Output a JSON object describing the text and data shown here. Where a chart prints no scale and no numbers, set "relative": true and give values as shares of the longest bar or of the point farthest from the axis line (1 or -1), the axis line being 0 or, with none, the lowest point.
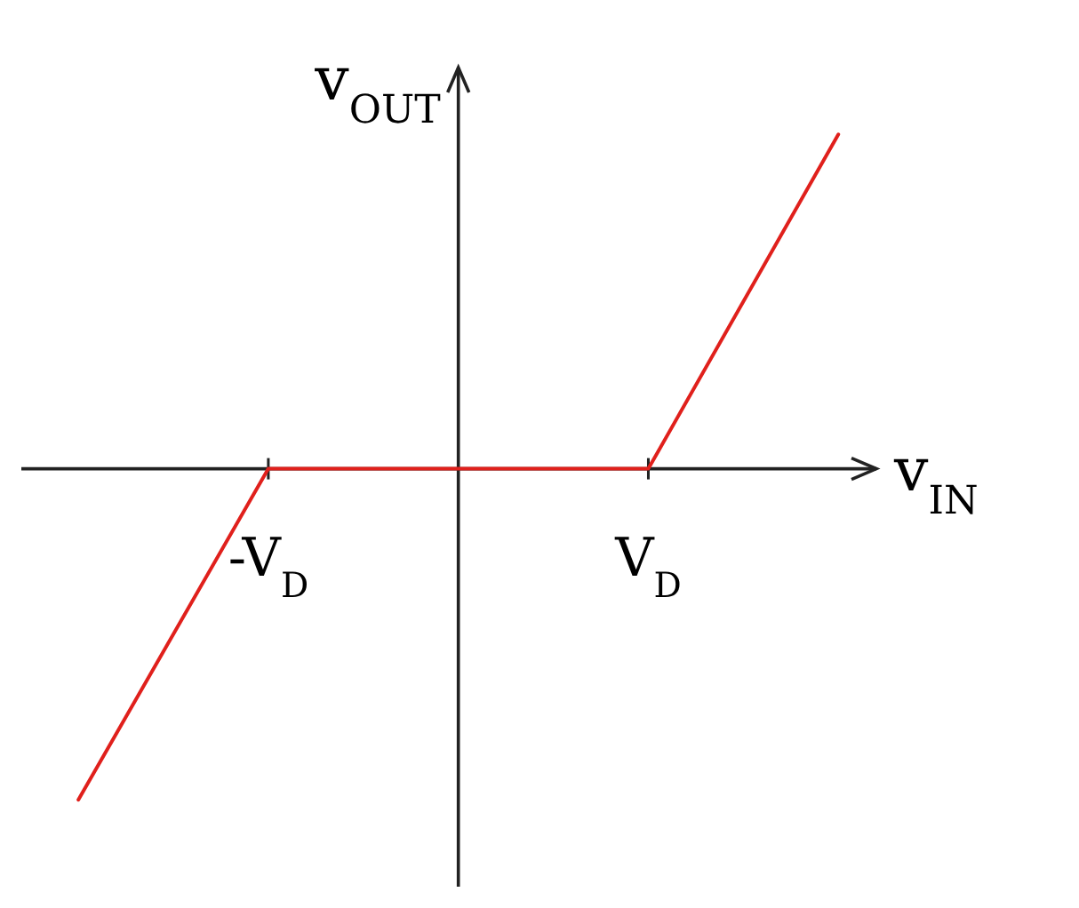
{
  "chart_data": {
    "type": "line",
    "relative": true,
    "xlabel": "v$_{IN}$",
    "ylabel": "v$_{OUT}$",
    "categories": [
      null,
      "-V$_{D}$",
      null,
      "V$_{D}$",
      null
    ],
    "tick_labels": "x",
    "series": [
      {
        "color": "#e0201c",
        "values": [
          -0.99,
          0,
          0,
          0,
          1
        ]
      }
    ]
  }
}
